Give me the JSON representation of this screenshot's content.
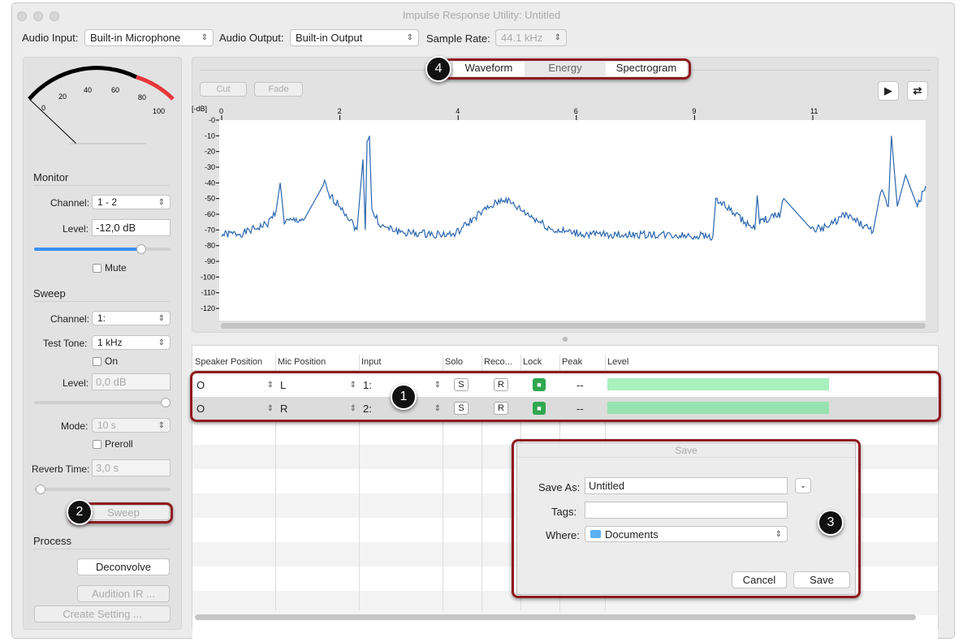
{
  "window": {
    "title": "Impulse Response Utility: Untitled"
  },
  "toolbar": {
    "audio_input_label": "Audio Input:",
    "audio_input": "Built-in Microphone",
    "audio_output_label": "Audio Output:",
    "audio_output": "Built-in Output",
    "sample_rate_label": "Sample Rate:",
    "sample_rate": "44.1 kHz"
  },
  "meter": {
    "ticks": [
      "0",
      "20",
      "40",
      "60",
      "80",
      "100"
    ],
    "level": 0
  },
  "monitor": {
    "title": "Monitor",
    "channel_label": "Channel:",
    "channel": "1 - 2",
    "level_label": "Level:",
    "level": "-12,0 dB",
    "slider": 0.78,
    "mute_label": "Mute"
  },
  "sweep": {
    "title": "Sweep",
    "channel_label": "Channel:",
    "channel": "1:",
    "test_tone_label": "Test Tone:",
    "test_tone": "1 kHz",
    "on_label": "On",
    "level_label": "Level:",
    "level": "0,0 dB",
    "mode_label": "Mode:",
    "mode": "10 s",
    "preroll_label": "Preroll",
    "reverb_label": "Reverb Time:",
    "reverb": "3,0 s",
    "sweep_button": "Sweep"
  },
  "process": {
    "title": "Process",
    "deconvolve": "Deconvolve",
    "audition": "Audition IR ...",
    "create_setting": "Create Setting ..."
  },
  "view_tabs": [
    "Waveform",
    "Energy",
    "Spectrogram"
  ],
  "edit": {
    "cut": "Cut",
    "fade": "Fade"
  },
  "chart_data": {
    "type": "line",
    "ylabel": "[-dB]",
    "x_ticks": [
      "0",
      "2",
      "4",
      "6",
      "9",
      "11"
    ],
    "y_ticks": [
      "-0",
      "-10",
      "-20",
      "-30",
      "-40",
      "-50",
      "-60",
      "-70",
      "-80",
      "-90",
      "-100",
      "-110",
      "-120"
    ],
    "ylim": [
      -120,
      0
    ],
    "color": "#2a66b0",
    "points": [
      [
        0,
        -73
      ],
      [
        0.37,
        -72
      ],
      [
        0.78,
        -66
      ],
      [
        0.92,
        -58
      ],
      [
        0.99,
        -40
      ],
      [
        1.06,
        -65
      ],
      [
        1.4,
        -63
      ],
      [
        1.74,
        -40
      ],
      [
        1.81,
        -48
      ],
      [
        2.02,
        -55
      ],
      [
        2.29,
        -70
      ],
      [
        2.39,
        -25
      ],
      [
        2.43,
        -70
      ],
      [
        2.46,
        -12
      ],
      [
        2.5,
        -10
      ],
      [
        2.54,
        -58
      ],
      [
        2.71,
        -68
      ],
      [
        3.12,
        -72
      ],
      [
        3.94,
        -73
      ],
      [
        4.35,
        -60
      ],
      [
        4.77,
        -50
      ],
      [
        5.18,
        -60
      ],
      [
        5.59,
        -70
      ],
      [
        6.29,
        -73
      ],
      [
        7.94,
        -73
      ],
      [
        9.31,
        -74
      ],
      [
        9.36,
        -50
      ],
      [
        9.62,
        -58
      ],
      [
        10.02,
        -70
      ],
      [
        10.06,
        -48
      ],
      [
        10.1,
        -65
      ],
      [
        10.44,
        -60
      ],
      [
        10.51,
        -50
      ],
      [
        10.99,
        -70
      ],
      [
        11.26,
        -68
      ],
      [
        11.54,
        -60
      ],
      [
        12.02,
        -71
      ],
      [
        12.15,
        -45
      ],
      [
        12.28,
        -55
      ],
      [
        12.33,
        -10
      ],
      [
        12.43,
        -55
      ],
      [
        12.57,
        -35
      ],
      [
        12.77,
        -55
      ],
      [
        12.91,
        -42
      ]
    ]
  },
  "table": {
    "headers": [
      "Speaker Position",
      "Mic Position",
      "Input",
      "Solo",
      "Reco...",
      "Lock",
      "Peak",
      "Level"
    ],
    "rows": [
      {
        "speaker": "O",
        "mic": "L",
        "input": "1:",
        "solo": "S",
        "rec": "R",
        "peak": "--",
        "level": 0.78
      },
      {
        "speaker": "O",
        "mic": "R",
        "input": "2:",
        "solo": "S",
        "rec": "R",
        "peak": "--",
        "level": 0.78
      }
    ]
  },
  "save_dialog": {
    "title": "Save",
    "save_as_label": "Save As:",
    "save_as": "Untitled",
    "tags_label": "Tags:",
    "tags": "",
    "where_label": "Where:",
    "where": "Documents",
    "cancel": "Cancel",
    "save": "Save"
  },
  "callouts": [
    "1",
    "2",
    "3",
    "4"
  ],
  "colors": {
    "annotation": "#8e1a1f",
    "level_bar": "#a8f0bc",
    "meter_red": "#e8363a"
  }
}
